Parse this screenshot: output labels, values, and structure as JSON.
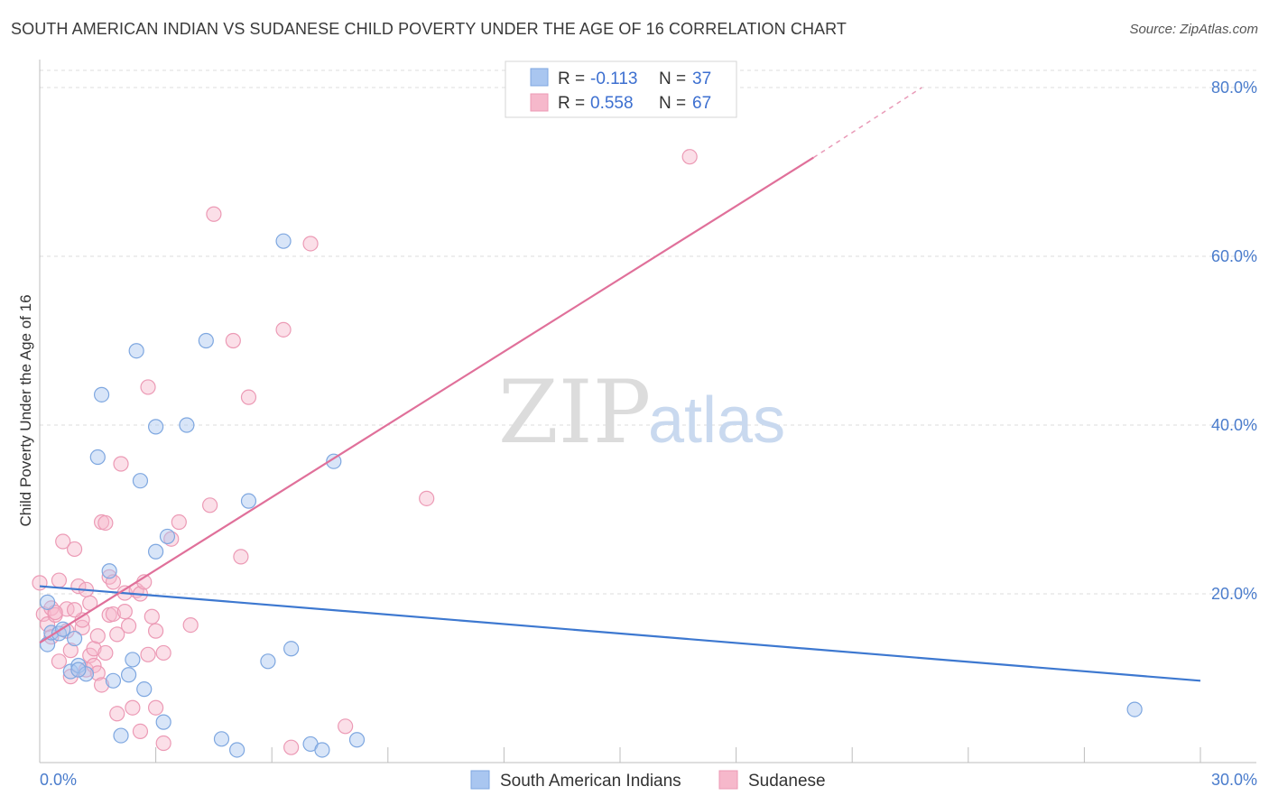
{
  "header": {
    "title": "SOUTH AMERICAN INDIAN VS SUDANESE CHILD POVERTY UNDER THE AGE OF 16 CORRELATION CHART",
    "source": "Source: ZipAtlas.com"
  },
  "watermark": {
    "zip": "ZIP",
    "atlas": "atlas"
  },
  "legend_top": {
    "rows": [
      {
        "r_label": "R =",
        "r_value": "-0.113",
        "n_label": "N =",
        "n_value": "37",
        "color": "#a9c6f0"
      },
      {
        "r_label": "R =",
        "r_value": "0.558",
        "n_label": "N =",
        "n_value": "67",
        "color": "#f6b8cb"
      }
    ]
  },
  "legend_bottom": {
    "items": [
      {
        "label": "South American Indians",
        "color": "#a9c6f0"
      },
      {
        "label": "Sudanese",
        "color": "#f6b8cb"
      }
    ]
  },
  "chart_data": {
    "type": "scatter",
    "ylabel": "Child Poverty Under the Age of 16",
    "xlabel": "",
    "xlim": [
      0,
      30
    ],
    "ylim": [
      0,
      80
    ],
    "x_tick_labels": [
      "0.0%",
      "30.0%"
    ],
    "y_tick_labels": [
      "20.0%",
      "40.0%",
      "60.0%",
      "80.0%"
    ],
    "y_ticks": [
      20,
      40,
      60,
      80
    ],
    "grid": true,
    "legend_position": "top-center",
    "colors": {
      "blue": "#3d78d0",
      "pink": "#e0709a",
      "blue_fill": "#a9c6f0",
      "pink_fill": "#f6b8cb"
    },
    "series": [
      {
        "name": "South American Indians",
        "color": "#3d78d0",
        "trend": {
          "x0": 0,
          "y0": 20.9,
          "x1": 30,
          "y1": 9.7
        },
        "points": [
          [
            0.2,
            19.0
          ],
          [
            0.2,
            14.0
          ],
          [
            0.3,
            15.4
          ],
          [
            0.5,
            15.3
          ],
          [
            0.6,
            15.8
          ],
          [
            0.8,
            10.8
          ],
          [
            1.0,
            11.5
          ],
          [
            1.2,
            10.5
          ],
          [
            1.0,
            11.0
          ],
          [
            0.9,
            14.7
          ],
          [
            1.5,
            36.2
          ],
          [
            1.6,
            43.6
          ],
          [
            1.8,
            22.7
          ],
          [
            1.9,
            9.7
          ],
          [
            2.1,
            3.2
          ],
          [
            2.3,
            10.4
          ],
          [
            2.4,
            12.2
          ],
          [
            2.5,
            48.8
          ],
          [
            2.6,
            33.4
          ],
          [
            2.7,
            8.7
          ],
          [
            3.0,
            25.0
          ],
          [
            3.0,
            39.8
          ],
          [
            3.2,
            4.8
          ],
          [
            3.3,
            26.8
          ],
          [
            3.8,
            40.0
          ],
          [
            4.3,
            50.0
          ],
          [
            4.7,
            2.8
          ],
          [
            5.1,
            1.5
          ],
          [
            5.4,
            31.0
          ],
          [
            5.9,
            12.0
          ],
          [
            6.3,
            61.8
          ],
          [
            6.5,
            13.5
          ],
          [
            7.0,
            2.2
          ],
          [
            7.3,
            1.5
          ],
          [
            7.6,
            35.7
          ],
          [
            8.2,
            2.7
          ],
          [
            28.3,
            6.3
          ]
        ]
      },
      {
        "name": "Sudanese",
        "color": "#e0709a",
        "trend": {
          "x0": 0,
          "y0": 14.2,
          "x1": 20,
          "y1": 71.7
        },
        "trend_dashed_to": {
          "x": 22.8,
          "y": 80.0
        },
        "points": [
          [
            0.0,
            21.3
          ],
          [
            0.1,
            17.6
          ],
          [
            0.2,
            16.4
          ],
          [
            0.3,
            18.3
          ],
          [
            0.4,
            17.5
          ],
          [
            0.5,
            12.0
          ],
          [
            0.5,
            21.6
          ],
          [
            0.6,
            26.2
          ],
          [
            0.7,
            15.6
          ],
          [
            0.7,
            18.2
          ],
          [
            0.8,
            13.3
          ],
          [
            0.8,
            10.2
          ],
          [
            0.9,
            25.3
          ],
          [
            1.0,
            20.9
          ],
          [
            1.1,
            16.0
          ],
          [
            1.1,
            16.9
          ],
          [
            1.2,
            11.0
          ],
          [
            1.3,
            12.7
          ],
          [
            1.3,
            18.9
          ],
          [
            1.4,
            13.5
          ],
          [
            1.4,
            11.5
          ],
          [
            1.5,
            15.0
          ],
          [
            1.5,
            10.6
          ],
          [
            1.6,
            28.5
          ],
          [
            1.6,
            9.2
          ],
          [
            1.7,
            28.4
          ],
          [
            1.7,
            13.0
          ],
          [
            1.8,
            17.5
          ],
          [
            1.8,
            22.0
          ],
          [
            1.9,
            21.4
          ],
          [
            1.9,
            17.6
          ],
          [
            2.0,
            5.8
          ],
          [
            2.0,
            15.2
          ],
          [
            2.1,
            35.4
          ],
          [
            2.2,
            20.1
          ],
          [
            2.2,
            17.9
          ],
          [
            2.3,
            16.2
          ],
          [
            2.4,
            6.5
          ],
          [
            2.5,
            20.4
          ],
          [
            2.6,
            20.0
          ],
          [
            2.6,
            3.7
          ],
          [
            2.7,
            21.4
          ],
          [
            2.8,
            12.8
          ],
          [
            2.8,
            44.5
          ],
          [
            3.0,
            15.6
          ],
          [
            3.0,
            6.5
          ],
          [
            3.2,
            2.3
          ],
          [
            3.2,
            13.0
          ],
          [
            3.4,
            26.5
          ],
          [
            3.6,
            28.5
          ],
          [
            3.9,
            16.3
          ],
          [
            4.5,
            65.0
          ],
          [
            4.4,
            30.5
          ],
          [
            5.0,
            50.0
          ],
          [
            5.2,
            24.4
          ],
          [
            5.4,
            43.3
          ],
          [
            6.3,
            51.3
          ],
          [
            6.5,
            1.8
          ],
          [
            7.0,
            61.5
          ],
          [
            7.9,
            4.3
          ],
          [
            10.0,
            31.3
          ],
          [
            16.8,
            71.8
          ],
          [
            0.4,
            17.8
          ],
          [
            0.9,
            18.1
          ],
          [
            1.2,
            20.5
          ],
          [
            0.3,
            14.9
          ],
          [
            2.9,
            17.3
          ]
        ]
      }
    ]
  }
}
